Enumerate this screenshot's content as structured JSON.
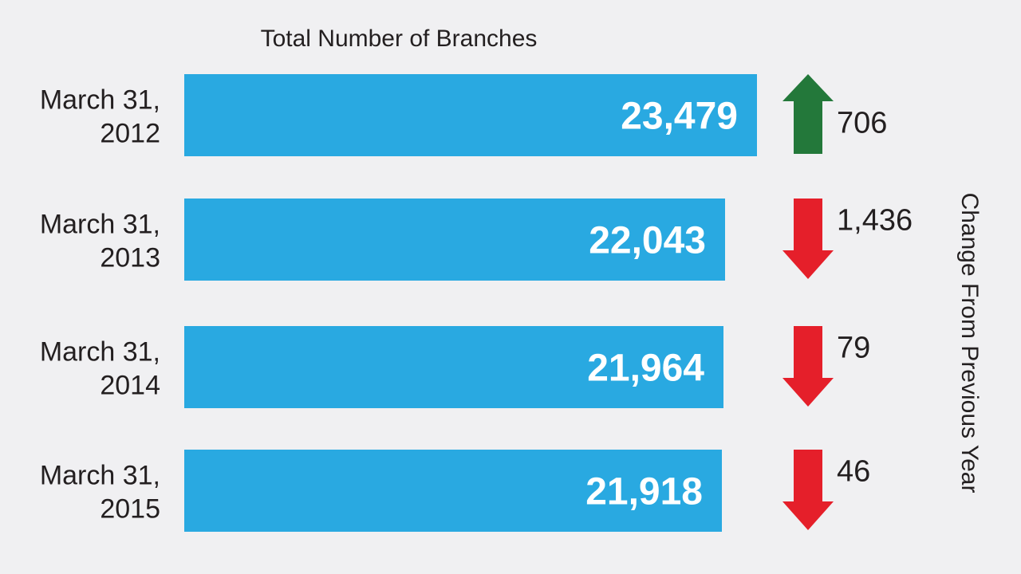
{
  "chart_data": {
    "type": "bar",
    "orientation": "horizontal",
    "title": "Total Number of Branches",
    "categories": [
      [
        "March 31,",
        "2012"
      ],
      [
        "March 31,",
        "2013"
      ],
      [
        "March 31,",
        "2014"
      ],
      [
        "March 31,",
        "2015"
      ]
    ],
    "values": [
      23479,
      22043,
      21964,
      21918
    ],
    "value_labels": [
      "23,479",
      "22,043",
      "21,964",
      "21,918"
    ],
    "changes": [
      {
        "direction": "up",
        "label": "706"
      },
      {
        "direction": "down",
        "label": "1,436"
      },
      {
        "direction": "down",
        "label": "79"
      },
      {
        "direction": "down",
        "label": "46"
      }
    ],
    "change_axis_label": "Change From Previous Year",
    "grid": false,
    "colors": {
      "bar": "#29a9e1",
      "up_arrow": "#23783a",
      "down_arrow": "#e51f2a",
      "background": "#f0f0f2"
    }
  }
}
